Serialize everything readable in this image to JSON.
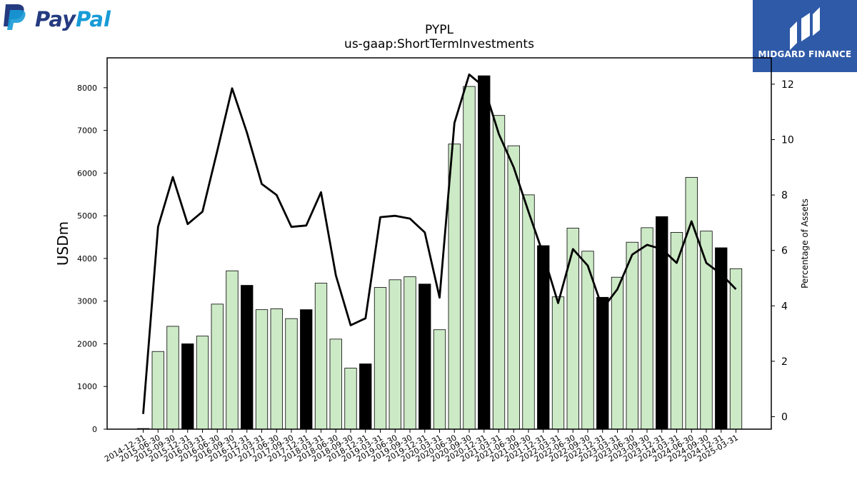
{
  "logos": {
    "left": {
      "brand": "PayPal",
      "part1": "Pay",
      "part2": "Pal",
      "color_dark": "#253b80",
      "color_light": "#179bd7"
    },
    "right": {
      "brand": "MIDGARD FINANCE",
      "background": "#2f5aa8"
    }
  },
  "chart_data": {
    "type": "bar",
    "title": "PYPL",
    "subtitle": "us-gaap:ShortTermInvestments",
    "ylabel": "USDm",
    "y2label": "Percentage of Assets",
    "ylim": [
      0,
      8700
    ],
    "y2lim": [
      -0.45,
      12.95
    ],
    "yticks": [
      0,
      1000,
      2000,
      3000,
      4000,
      5000,
      6000,
      7000,
      8000
    ],
    "y2ticks": [
      0,
      2,
      4,
      6,
      8,
      10,
      12
    ],
    "grid": false,
    "bar_color_quarter": "#cdeac6",
    "bar_color_year_end": "#000000",
    "categories": [
      "2014-12-31",
      "2015-06-30",
      "2015-09-30",
      "2015-12-31",
      "2016-03-31",
      "2016-06-30",
      "2016-09-30",
      "2016-12-31",
      "2017-03-31",
      "2017-06-30",
      "2017-09-30",
      "2017-12-31",
      "2018-03-31",
      "2018-06-30",
      "2018-09-30",
      "2018-12-31",
      "2019-03-31",
      "2019-06-30",
      "2019-09-30",
      "2019-12-31",
      "2020-03-31",
      "2020-06-30",
      "2020-09-30",
      "2020-12-31",
      "2021-03-31",
      "2021-06-30",
      "2021-09-30",
      "2021-12-31",
      "2022-03-31",
      "2022-06-30",
      "2022-09-30",
      "2022-12-31",
      "2023-03-31",
      "2023-06-30",
      "2023-09-30",
      "2023-12-31",
      "2024-03-31",
      "2024-06-30",
      "2024-09-30",
      "2024-12-31",
      "2025-03-31"
    ],
    "series": [
      {
        "values": [
          15,
          1820,
          2410,
          2000,
          2180,
          2930,
          3710,
          3370,
          2800,
          2820,
          2590,
          2800,
          3420,
          2110,
          1430,
          1530,
          3320,
          3500,
          3570,
          3400,
          2330,
          6680,
          8030,
          8280,
          7350,
          6640,
          5490,
          4300,
          3100,
          4710,
          4170,
          3090,
          3560,
          4380,
          4720,
          4980,
          4610,
          5900,
          4640,
          4250,
          3760
        ],
        "year_end": [
          true,
          false,
          false,
          true,
          false,
          false,
          false,
          true,
          false,
          false,
          false,
          true,
          false,
          false,
          false,
          true,
          false,
          false,
          false,
          true,
          false,
          false,
          false,
          true,
          false,
          false,
          false,
          true,
          false,
          false,
          false,
          true,
          false,
          false,
          false,
          true,
          false,
          false,
          false,
          true,
          false
        ]
      },
      {
        "values": [
          0.1,
          6.85,
          8.65,
          6.95,
          7.4,
          9.6,
          11.85,
          10.25,
          8.4,
          8.0,
          6.85,
          6.9,
          8.1,
          5.1,
          3.3,
          3.55,
          7.2,
          7.25,
          7.15,
          6.65,
          4.3,
          10.6,
          12.35,
          11.9,
          10.2,
          9.0,
          7.4,
          5.85,
          4.1,
          6.05,
          5.45,
          3.9,
          4.6,
          5.85,
          6.2,
          6.05,
          5.55,
          7.05,
          5.55,
          5.15,
          4.6
        ]
      }
    ]
  }
}
